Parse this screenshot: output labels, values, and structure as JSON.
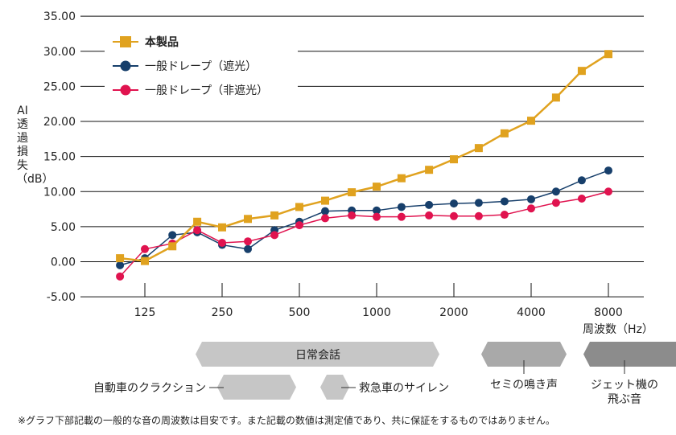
{
  "chart_data": {
    "type": "line",
    "ylabel": "AI透過損失（dB）",
    "xlabel": "周波数（Hz）",
    "ylim": [
      -5,
      35
    ],
    "yticks": [
      "-5.00",
      "0.00",
      "5.00",
      "10.00",
      "15.00",
      "20.00",
      "25.00",
      "30.00",
      "35.00"
    ],
    "xscale": "log",
    "xticks": [
      "125",
      "250",
      "500",
      "1000",
      "2000",
      "4000",
      "8000"
    ],
    "grid": "horizontal",
    "legend_position": "top-left",
    "x": [
      100,
      125,
      160,
      200,
      250,
      315,
      400,
      500,
      630,
      800,
      1000,
      1250,
      1600,
      2000,
      2500,
      3150,
      4000,
      5000,
      6300,
      8000
    ],
    "series": [
      {
        "name": "本製品",
        "color": "#e0a21f",
        "marker": "square",
        "values": [
          0.5,
          0.1,
          2.2,
          5.7,
          4.9,
          6.1,
          6.6,
          7.8,
          8.7,
          9.9,
          10.7,
          11.9,
          13.1,
          14.6,
          16.2,
          18.3,
          20.1,
          23.4,
          27.2,
          29.6
        ]
      },
      {
        "name": "一般ドレープ（遮光）",
        "color": "#173f6b",
        "marker": "circle",
        "values": [
          -0.5,
          0.5,
          3.8,
          4.2,
          2.4,
          1.8,
          4.5,
          5.7,
          7.2,
          7.3,
          7.3,
          7.8,
          8.1,
          8.3,
          8.4,
          8.6,
          8.9,
          10.0,
          11.6,
          13.0
        ]
      },
      {
        "name": "一般ドレープ（非遮光）",
        "color": "#e0134f",
        "marker": "circle",
        "values": [
          -2.1,
          1.8,
          2.6,
          4.5,
          2.7,
          2.9,
          3.8,
          5.2,
          6.2,
          6.6,
          6.4,
          6.4,
          6.6,
          6.5,
          6.5,
          6.7,
          7.6,
          8.4,
          9.0,
          10.0
        ]
      }
    ]
  },
  "bands": {
    "conversation": "日常会話",
    "car_horn": "自動車のクラクション",
    "siren": "救急車のサイレン",
    "cicada": "セミの鳴き声",
    "jet_line1": "ジェット機の",
    "jet_line2": "飛ぶ音",
    "colors": {
      "light": "#c6c6c6",
      "mid": "#a9a9a9",
      "dark": "#8c8c8c"
    }
  },
  "footnote": "※グラフ下部記載の一般的な音の周波数は目安です。また記載の数値は測定値であり、共に保証をするものではありません。"
}
